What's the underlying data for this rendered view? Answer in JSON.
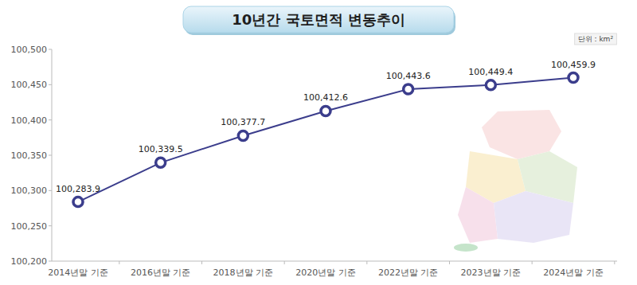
{
  "chart_data": {
    "type": "line",
    "title": "10년간 국토면적 변동추이",
    "unit": "단위 : km²",
    "categories": [
      "2014년말 기준",
      "2016년말 기준",
      "2018년말 기준",
      "2020년말 기준",
      "2022년말 기준",
      "2023년말 기준",
      "2024년말 기준"
    ],
    "values": [
      100283.9,
      100339.5,
      100377.7,
      100412.6,
      100443.6,
      100449.4,
      100459.9
    ],
    "value_labels": [
      "100,283.9",
      "100,339.5",
      "100,377.7",
      "100,412.6",
      "100,443.6",
      "100,449.4",
      "100,459.9"
    ],
    "color": "#3b3d8c",
    "marker": "circle",
    "data_labels": true,
    "grid": false,
    "ylim": [
      100200,
      100500
    ],
    "yticks": [
      {
        "value": 100200,
        "label": "100,200"
      },
      {
        "value": 100250,
        "label": "100,250"
      },
      {
        "value": 100300,
        "label": "100,300"
      },
      {
        "value": 100350,
        "label": "100,350"
      },
      {
        "value": 100400,
        "label": "100,400"
      },
      {
        "value": 100450,
        "label": "100,450"
      },
      {
        "value": 100500,
        "label": "100,500"
      }
    ]
  }
}
